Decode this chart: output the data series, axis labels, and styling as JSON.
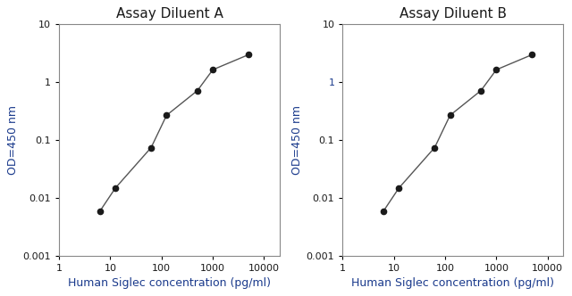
{
  "title_A": "Assay Diluent A",
  "title_B": "Assay Diluent B",
  "xlabel": "Human Siglec concentration (pg/ml)",
  "ylabel": "OD=450 nm",
  "title_color": "#1a1a1a",
  "label_color": "#1a3a8c",
  "tick_color": "#1a1a1a",
  "line_color": "#555555",
  "marker_color": "#1a1a1a",
  "x_A": [
    6.25,
    12.5,
    62.5,
    125,
    500,
    1000,
    5000
  ],
  "y_A": [
    0.006,
    0.015,
    0.075,
    0.27,
    0.72,
    1.65,
    3.0
  ],
  "x_B": [
    6.25,
    12.5,
    62.5,
    125,
    500,
    1000,
    5000
  ],
  "y_B": [
    0.006,
    0.015,
    0.075,
    0.27,
    0.72,
    1.65,
    3.0
  ],
  "xlim": [
    1,
    20000
  ],
  "ylim": [
    0.001,
    10
  ],
  "xticks": [
    1,
    10,
    100,
    1000,
    10000
  ],
  "yticks": [
    0.001,
    0.01,
    0.1,
    1,
    10
  ],
  "background_color": "#ffffff",
  "ax_background": "#ffffff",
  "spine_color": "#888888",
  "title_fontsize": 11,
  "label_fontsize": 9,
  "tick_fontsize": 8
}
